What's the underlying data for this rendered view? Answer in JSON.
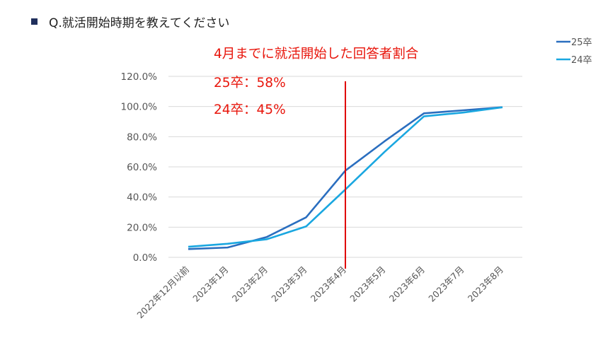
{
  "header": {
    "question": "Q.就活開始時期を教えてください"
  },
  "colors": {
    "series_25": "#2a6ebf",
    "series_24": "#1aa7e0",
    "marker": "#e00000",
    "grid": "#d9d9d9"
  },
  "chart_data": {
    "type": "line",
    "title": "",
    "categories": [
      "2022年12月以前",
      "2023年1月",
      "2023年2月",
      "2023年3月",
      "2023年4月",
      "2023年5月",
      "2023年6月",
      "2023年7月",
      "2023年8月"
    ],
    "series": [
      {
        "name": "25卒",
        "values": [
          5.5,
          6.5,
          13.5,
          26.5,
          57.5,
          77,
          95.5,
          97.5,
          99.5
        ]
      },
      {
        "name": "24卒",
        "values": [
          7,
          9,
          12,
          20.5,
          45,
          70,
          93.5,
          96,
          99.5
        ]
      }
    ],
    "y_ticks": [
      "0.0%",
      "20.0%",
      "40.0%",
      "60.0%",
      "80.0%",
      "100.0%",
      "120.0%"
    ],
    "ylim": [
      0,
      120
    ],
    "grid": true,
    "legend_position": "top-right",
    "marker_category": "2023年4月",
    "annotations": [
      "4月までに就活開始した回答者割合",
      "25卒：58%",
      "24卒：45%"
    ]
  }
}
